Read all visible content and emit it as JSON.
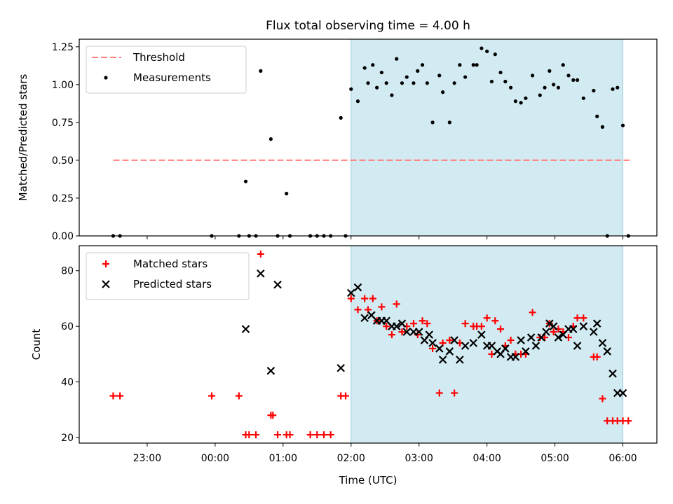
{
  "title": "Flux total observing time = 4.00 h",
  "colors": {
    "threshold": "#ff8080",
    "matched": "#ff0000",
    "predicted": "#000000",
    "shade": "#add8e6",
    "measure": "#000000"
  },
  "chart_data": [
    {
      "type": "scatter",
      "panel": "top",
      "title": "Flux total observing time = 4.00 h",
      "xlabel": "",
      "ylabel": "Matched/Predicted stars",
      "x_unit": "hours after 22:00 UTC",
      "xlim": [
        0,
        8.5
      ],
      "ylim": [
        0,
        1.3
      ],
      "yticks": [
        0,
        0.25,
        0.5,
        0.75,
        1.0,
        1.25
      ],
      "ytick_labels": [
        "0.00",
        "0.25",
        "0.50",
        "0.75",
        "1.00",
        "1.25"
      ],
      "shaded_span": [
        4.0,
        8.0
      ],
      "threshold": {
        "name": "Threshold",
        "value": 0.5,
        "x_range": [
          0.5,
          8.1
        ]
      },
      "legend": [
        "Threshold",
        "Measurements"
      ],
      "legend_position": "top-left",
      "series": [
        {
          "name": "Measurements",
          "x": [
            0.5,
            0.6,
            1.95,
            2.35,
            2.45,
            2.5,
            2.6,
            2.67,
            2.82,
            2.92,
            3.05,
            3.1,
            3.4,
            3.5,
            3.6,
            3.7,
            3.85,
            3.92,
            4.0,
            4.1,
            4.2,
            4.25,
            4.32,
            4.38,
            4.45,
            4.52,
            4.6,
            4.67,
            4.75,
            4.82,
            4.92,
            4.98,
            5.05,
            5.12,
            5.2,
            5.3,
            5.35,
            5.45,
            5.52,
            5.6,
            5.68,
            5.8,
            5.85,
            5.92,
            6.0,
            6.07,
            6.12,
            6.2,
            6.27,
            6.35,
            6.42,
            6.5,
            6.57,
            6.67,
            6.78,
            6.85,
            6.92,
            6.98,
            7.05,
            7.12,
            7.2,
            7.27,
            7.33,
            7.42,
            7.57,
            7.62,
            7.7,
            7.77,
            7.85,
            7.92,
            8.0,
            8.08
          ],
          "y": [
            0,
            0,
            0,
            0,
            0.36,
            0,
            0,
            1.09,
            0.64,
            0,
            0.28,
            0,
            0,
            0,
            0,
            0,
            0.78,
            0,
            0.97,
            0.89,
            1.11,
            1.01,
            1.13,
            0.98,
            1.08,
            1.01,
            0.93,
            1.17,
            1.01,
            1.05,
            1.01,
            1.09,
            1.13,
            1.01,
            0.75,
            1.06,
            0.95,
            0.75,
            1.01,
            1.13,
            1.05,
            1.13,
            1.13,
            1.24,
            1.22,
            1.02,
            1.2,
            1.08,
            1.02,
            0.98,
            0.89,
            0.88,
            0.91,
            1.06,
            0.93,
            0.98,
            1.09,
            1.0,
            0.98,
            1.13,
            1.06,
            1.03,
            1.03,
            0.91,
            0.96,
            0.79,
            0.72,
            0.0,
            0.97,
            0.98,
            0.73,
            0.0
          ]
        }
      ]
    },
    {
      "type": "scatter",
      "panel": "bottom",
      "xlabel": "Time (UTC)",
      "ylabel": "Count",
      "x_unit": "hours after 22:00 UTC",
      "xlim": [
        0,
        8.5
      ],
      "ylim": [
        18,
        89
      ],
      "yticks": [
        20,
        40,
        60,
        80
      ],
      "ytick_labels": [
        "20",
        "40",
        "60",
        "80"
      ],
      "xticks": [
        1,
        2,
        3,
        4,
        5,
        6,
        7,
        8
      ],
      "xtick_labels": [
        "23:00",
        "00:00",
        "01:00",
        "02:00",
        "03:00",
        "04:00",
        "05:00",
        "06:00"
      ],
      "shaded_span": [
        4.0,
        8.0
      ],
      "legend": [
        "Matched stars",
        "Predicted stars"
      ],
      "legend_position": "top-left",
      "series": [
        {
          "name": "Matched stars",
          "marker": "plus",
          "x": [
            0.5,
            0.6,
            1.95,
            2.35,
            2.45,
            2.5,
            2.6,
            2.67,
            2.82,
            2.85,
            2.92,
            3.05,
            3.1,
            3.4,
            3.5,
            3.6,
            3.7,
            3.85,
            3.92,
            4.0,
            4.1,
            4.2,
            4.25,
            4.32,
            4.38,
            4.45,
            4.52,
            4.6,
            4.67,
            4.75,
            4.82,
            4.92,
            4.98,
            5.05,
            5.12,
            5.2,
            5.3,
            5.35,
            5.45,
            5.52,
            5.6,
            5.68,
            5.8,
            5.85,
            5.92,
            6.0,
            6.07,
            6.12,
            6.2,
            6.27,
            6.35,
            6.42,
            6.5,
            6.57,
            6.67,
            6.78,
            6.85,
            6.92,
            6.98,
            7.05,
            7.12,
            7.2,
            7.27,
            7.33,
            7.42,
            7.57,
            7.62,
            7.7,
            7.77,
            7.85,
            7.92,
            8.0,
            8.08
          ],
          "y": [
            35,
            35,
            35,
            35,
            21,
            21,
            21,
            86,
            28,
            28,
            21,
            21,
            21,
            21,
            21,
            21,
            21,
            35,
            35,
            70,
            66,
            70,
            66,
            70,
            62,
            67,
            60,
            57,
            68,
            58,
            60,
            61,
            57,
            62,
            61,
            52,
            36,
            54,
            55,
            36,
            54,
            61,
            60,
            60,
            60,
            63,
            50,
            62,
            59,
            53,
            55,
            50,
            50,
            50,
            65,
            56,
            56,
            61,
            58,
            59,
            58,
            56,
            60,
            63,
            63,
            49,
            49,
            34,
            26,
            26,
            26,
            26,
            26
          ],
          "note": "last few x values continue to 8.12"
        },
        {
          "name": "Predicted stars",
          "marker": "x",
          "x": [
            2.45,
            2.67,
            2.82,
            2.92,
            3.85,
            4.0,
            4.1,
            4.2,
            4.3,
            4.38,
            4.45,
            4.52,
            4.6,
            4.67,
            4.75,
            4.82,
            4.92,
            5.0,
            5.08,
            5.15,
            5.2,
            5.3,
            5.35,
            5.45,
            5.52,
            5.6,
            5.68,
            5.8,
            5.92,
            6.0,
            6.07,
            6.15,
            6.2,
            6.27,
            6.35,
            6.42,
            6.5,
            6.57,
            6.65,
            6.72,
            6.8,
            6.87,
            6.92,
            6.98,
            7.05,
            7.12,
            7.2,
            7.27,
            7.33,
            7.42,
            7.57,
            7.62,
            7.7,
            7.77,
            7.85,
            7.92,
            8.0
          ],
          "y": [
            59,
            79,
            44,
            75,
            45,
            72,
            74,
            63,
            64,
            62,
            62,
            62,
            60,
            60,
            61,
            58,
            58,
            58,
            55,
            57,
            54,
            52,
            48,
            51,
            55,
            48,
            53,
            54,
            57,
            53,
            53,
            51,
            50,
            52,
            49,
            49,
            55,
            51,
            56,
            53,
            56,
            58,
            61,
            60,
            56,
            57,
            59,
            59,
            53,
            60,
            58,
            61,
            54,
            51,
            43,
            36,
            36
          ]
        }
      ]
    }
  ]
}
